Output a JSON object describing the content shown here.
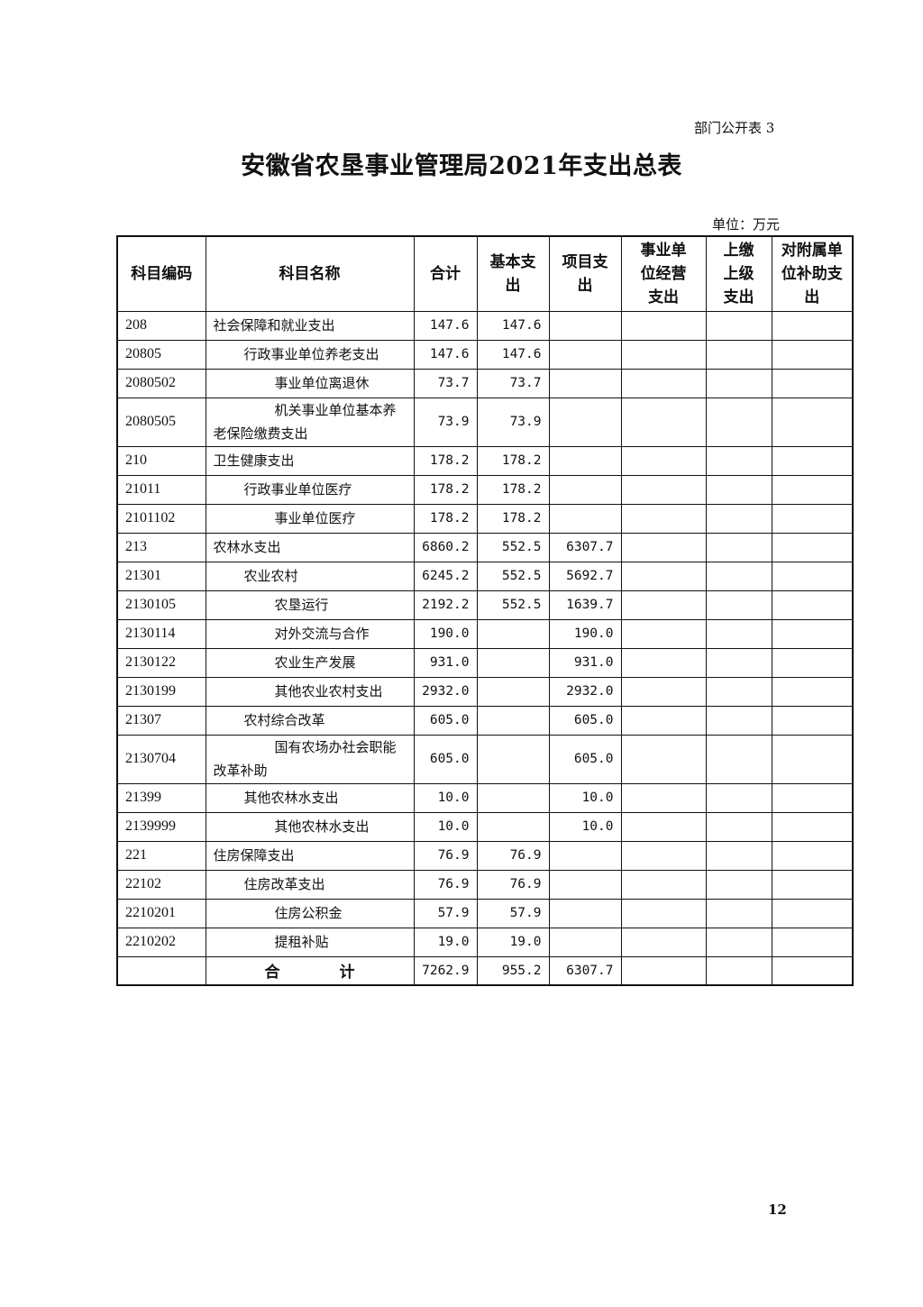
{
  "header": {
    "tag": "部门公开表 3",
    "title": "安徽省农垦事业管理局2021年支出总表",
    "unit": "单位：万元"
  },
  "table": {
    "columns": [
      "科目编码",
      "科目名称",
      "合计",
      "基本支出",
      "项目支出",
      "事业单位经营支出",
      "上缴上级支出",
      "对附属单位补助支出"
    ],
    "rows": [
      {
        "code": "208",
        "name": "社会保障和就业支出",
        "level": 0,
        "total": "147.6",
        "basic": "147.6",
        "project": ""
      },
      {
        "code": "20805",
        "name": "行政事业单位养老支出",
        "level": 1,
        "total": "147.6",
        "basic": "147.6",
        "project": ""
      },
      {
        "code": "2080502",
        "name": "事业单位离退休",
        "level": 2,
        "total": "73.7",
        "basic": "73.7",
        "project": ""
      },
      {
        "code": "2080505",
        "name": "机关事业单位基本养老保险缴费支出",
        "level": 2,
        "total": "73.9",
        "basic": "73.9",
        "project": ""
      },
      {
        "code": "210",
        "name": "卫生健康支出",
        "level": 0,
        "total": "178.2",
        "basic": "178.2",
        "project": ""
      },
      {
        "code": "21011",
        "name": "行政事业单位医疗",
        "level": 1,
        "total": "178.2",
        "basic": "178.2",
        "project": ""
      },
      {
        "code": "2101102",
        "name": "事业单位医疗",
        "level": 2,
        "total": "178.2",
        "basic": "178.2",
        "project": ""
      },
      {
        "code": "213",
        "name": "农林水支出",
        "level": 0,
        "total": "6860.2",
        "basic": "552.5",
        "project": "6307.7"
      },
      {
        "code": "21301",
        "name": "农业农村",
        "level": 1,
        "total": "6245.2",
        "basic": "552.5",
        "project": "5692.7"
      },
      {
        "code": "2130105",
        "name": "农垦运行",
        "level": 2,
        "total": "2192.2",
        "basic": "552.5",
        "project": "1639.7"
      },
      {
        "code": "2130114",
        "name": "对外交流与合作",
        "level": 2,
        "total": "190.0",
        "basic": "",
        "project": "190.0"
      },
      {
        "code": "2130122",
        "name": "农业生产发展",
        "level": 2,
        "total": "931.0",
        "basic": "",
        "project": "931.0"
      },
      {
        "code": "2130199",
        "name": "其他农业农村支出",
        "level": 2,
        "total": "2932.0",
        "basic": "",
        "project": "2932.0"
      },
      {
        "code": "21307",
        "name": "农村综合改革",
        "level": 1,
        "total": "605.0",
        "basic": "",
        "project": "605.0"
      },
      {
        "code": "2130704",
        "name": "国有农场办社会职能改革补助",
        "level": 2,
        "total": "605.0",
        "basic": "",
        "project": "605.0"
      },
      {
        "code": "21399",
        "name": "其他农林水支出",
        "level": 1,
        "total": "10.0",
        "basic": "",
        "project": "10.0"
      },
      {
        "code": "2139999",
        "name": "其他农林水支出",
        "level": 2,
        "total": "10.0",
        "basic": "",
        "project": "10.0"
      },
      {
        "code": "221",
        "name": "住房保障支出",
        "level": 0,
        "total": "76.9",
        "basic": "76.9",
        "project": ""
      },
      {
        "code": "22102",
        "name": "住房改革支出",
        "level": 1,
        "total": "76.9",
        "basic": "76.9",
        "project": ""
      },
      {
        "code": "2210201",
        "name": "住房公积金",
        "level": 2,
        "total": "57.9",
        "basic": "57.9",
        "project": ""
      },
      {
        "code": "2210202",
        "name": "提租补贴",
        "level": 2,
        "total": "19.0",
        "basic": "19.0",
        "project": ""
      }
    ],
    "total_row": {
      "label": "合 计",
      "total": "7262.9",
      "basic": "955.2",
      "project": "6307.7"
    }
  },
  "footer": {
    "page_number": "12"
  }
}
